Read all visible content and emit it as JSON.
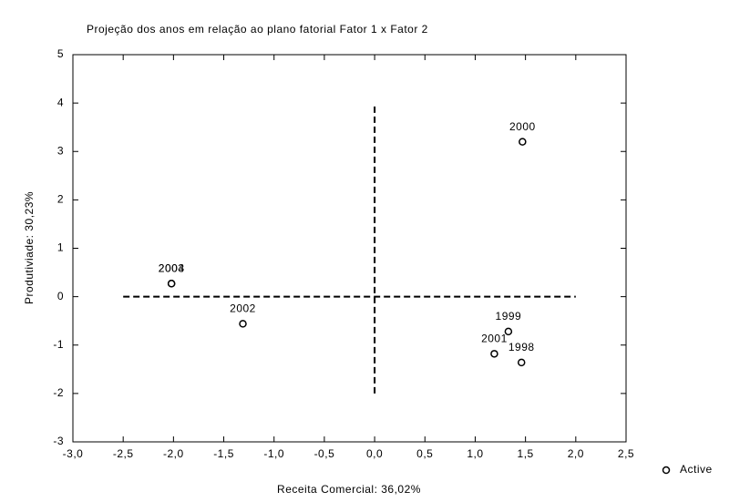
{
  "chart_data": {
    "type": "scatter",
    "title": "Projeção dos anos em relação ao plano fatorial Fator 1 x Fator 2",
    "xlabel": "Receita Comercial: 36,02%",
    "ylabel": "Produtiviade: 30,23%",
    "series": [
      {
        "name": "Active",
        "color": "#000000",
        "x": [
          1.47,
          1.33,
          1.19,
          1.46,
          -1.31,
          -2.02,
          -2.02
        ],
        "y": [
          3.2,
          -0.72,
          -1.18,
          -1.36,
          -0.56,
          0.27,
          0.27
        ],
        "labels": [
          "2000",
          "1999",
          "2001",
          "1998",
          "2002",
          "2003",
          "2004"
        ]
      }
    ],
    "xlim": [
      -3,
      2.5
    ],
    "xticks": [
      {
        "value": -3,
        "label": "-3,0"
      },
      {
        "value": -2.5,
        "label": "-2,5"
      },
      {
        "value": -2,
        "label": "-2,0"
      },
      {
        "value": -1.5,
        "label": "-1,5"
      },
      {
        "value": -1,
        "label": "-1,0"
      },
      {
        "value": -0.5,
        "label": "-0,5"
      },
      {
        "value": 0,
        "label": "0,0"
      },
      {
        "value": 0.5,
        "label": "0,5"
      },
      {
        "value": 1,
        "label": "1,0"
      },
      {
        "value": 1.5,
        "label": "1,5"
      },
      {
        "value": 2,
        "label": "2,0"
      },
      {
        "value": 2.5,
        "label": "2,5"
      }
    ],
    "ylim": [
      -3,
      5
    ],
    "yticks": [
      -3,
      -2,
      -1,
      0,
      1,
      2,
      3,
      4,
      5
    ],
    "reference_lines": [
      {
        "axis": "y",
        "value": 0,
        "from": -2.5,
        "to": 2
      },
      {
        "axis": "x",
        "value": 0,
        "from": -2,
        "to": 4
      }
    ],
    "grid": false,
    "legend": "bottom-right"
  }
}
